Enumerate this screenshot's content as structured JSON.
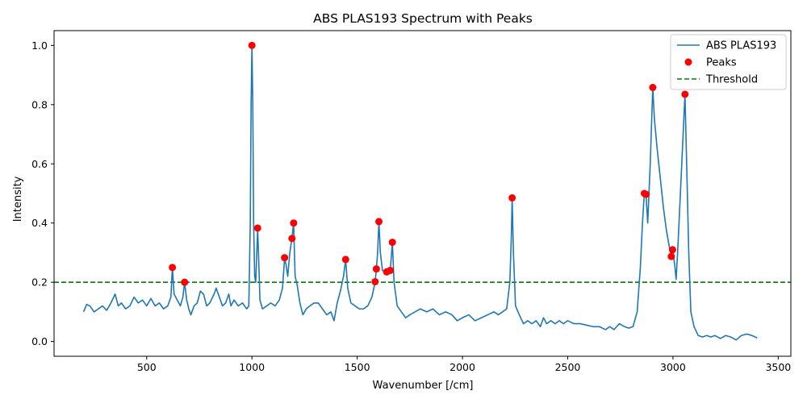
{
  "chart_data": {
    "type": "line",
    "title": "ABS PLAS193 Spectrum with Peaks",
    "xlabel": "Wavenumber [/cm]",
    "ylabel": "Intensity",
    "xlim": [
      60,
      3560
    ],
    "ylim": [
      -0.05,
      1.05
    ],
    "x_ticks": [
      500,
      1000,
      1500,
      2000,
      2500,
      3000,
      3500
    ],
    "y_ticks": [
      0.0,
      0.2,
      0.4,
      0.6,
      0.8,
      1.0
    ],
    "grid": false,
    "legend_position": "top-right",
    "series": [
      {
        "name": "ABS PLAS193",
        "kind": "line",
        "color": "#1f77b4",
        "points": [
          [
            200,
            0.1
          ],
          [
            215,
            0.125
          ],
          [
            230,
            0.12
          ],
          [
            250,
            0.1
          ],
          [
            270,
            0.11
          ],
          [
            290,
            0.12
          ],
          [
            310,
            0.105
          ],
          [
            330,
            0.13
          ],
          [
            350,
            0.16
          ],
          [
            365,
            0.12
          ],
          [
            380,
            0.13
          ],
          [
            400,
            0.11
          ],
          [
            420,
            0.12
          ],
          [
            440,
            0.15
          ],
          [
            460,
            0.13
          ],
          [
            480,
            0.14
          ],
          [
            500,
            0.12
          ],
          [
            520,
            0.145
          ],
          [
            540,
            0.12
          ],
          [
            560,
            0.13
          ],
          [
            580,
            0.11
          ],
          [
            600,
            0.12
          ],
          [
            615,
            0.15
          ],
          [
            622,
            0.25
          ],
          [
            630,
            0.16
          ],
          [
            645,
            0.14
          ],
          [
            660,
            0.12
          ],
          [
            672,
            0.15
          ],
          [
            680,
            0.2
          ],
          [
            690,
            0.14
          ],
          [
            700,
            0.11
          ],
          [
            710,
            0.09
          ],
          [
            725,
            0.12
          ],
          [
            740,
            0.13
          ],
          [
            755,
            0.17
          ],
          [
            770,
            0.16
          ],
          [
            785,
            0.12
          ],
          [
            800,
            0.13
          ],
          [
            820,
            0.16
          ],
          [
            830,
            0.18
          ],
          [
            845,
            0.15
          ],
          [
            860,
            0.12
          ],
          [
            875,
            0.13
          ],
          [
            890,
            0.16
          ],
          [
            900,
            0.12
          ],
          [
            915,
            0.14
          ],
          [
            935,
            0.12
          ],
          [
            955,
            0.13
          ],
          [
            975,
            0.11
          ],
          [
            985,
            0.12
          ],
          [
            992,
            0.4
          ],
          [
            996,
            0.8
          ],
          [
            1000,
            1.0
          ],
          [
            1004,
            0.8
          ],
          [
            1008,
            0.4
          ],
          [
            1013,
            0.22
          ],
          [
            1018,
            0.2
          ],
          [
            1023,
            0.3
          ],
          [
            1027,
            0.38
          ],
          [
            1032,
            0.28
          ],
          [
            1038,
            0.14
          ],
          [
            1050,
            0.11
          ],
          [
            1070,
            0.12
          ],
          [
            1090,
            0.13
          ],
          [
            1110,
            0.12
          ],
          [
            1130,
            0.14
          ],
          [
            1145,
            0.18
          ],
          [
            1155,
            0.28
          ],
          [
            1162,
            0.26
          ],
          [
            1170,
            0.22
          ],
          [
            1180,
            0.3
          ],
          [
            1190,
            0.35
          ],
          [
            1198,
            0.4
          ],
          [
            1205,
            0.22
          ],
          [
            1215,
            0.19
          ],
          [
            1228,
            0.13
          ],
          [
            1242,
            0.09
          ],
          [
            1258,
            0.11
          ],
          [
            1275,
            0.12
          ],
          [
            1295,
            0.13
          ],
          [
            1315,
            0.13
          ],
          [
            1335,
            0.11
          ],
          [
            1355,
            0.09
          ],
          [
            1375,
            0.1
          ],
          [
            1390,
            0.07
          ],
          [
            1405,
            0.13
          ],
          [
            1420,
            0.17
          ],
          [
            1435,
            0.22
          ],
          [
            1445,
            0.277
          ],
          [
            1455,
            0.18
          ],
          [
            1470,
            0.13
          ],
          [
            1490,
            0.12
          ],
          [
            1510,
            0.11
          ],
          [
            1530,
            0.11
          ],
          [
            1550,
            0.12
          ],
          [
            1570,
            0.15
          ],
          [
            1585,
            0.2
          ],
          [
            1591,
            0.245
          ],
          [
            1597,
            0.3
          ],
          [
            1603,
            0.405
          ],
          [
            1610,
            0.3
          ],
          [
            1620,
            0.24
          ],
          [
            1635,
            0.233
          ],
          [
            1645,
            0.235
          ],
          [
            1657,
            0.24
          ],
          [
            1667,
            0.335
          ],
          [
            1675,
            0.2
          ],
          [
            1690,
            0.12
          ],
          [
            1710,
            0.1
          ],
          [
            1730,
            0.08
          ],
          [
            1750,
            0.09
          ],
          [
            1775,
            0.1
          ],
          [
            1800,
            0.11
          ],
          [
            1830,
            0.1
          ],
          [
            1860,
            0.11
          ],
          [
            1890,
            0.09
          ],
          [
            1920,
            0.1
          ],
          [
            1950,
            0.09
          ],
          [
            1975,
            0.07
          ],
          [
            2000,
            0.08
          ],
          [
            2030,
            0.09
          ],
          [
            2060,
            0.07
          ],
          [
            2090,
            0.08
          ],
          [
            2120,
            0.09
          ],
          [
            2150,
            0.1
          ],
          [
            2170,
            0.09
          ],
          [
            2190,
            0.1
          ],
          [
            2210,
            0.11
          ],
          [
            2225,
            0.2
          ],
          [
            2232,
            0.35
          ],
          [
            2236,
            0.485
          ],
          [
            2242,
            0.3
          ],
          [
            2252,
            0.12
          ],
          [
            2270,
            0.09
          ],
          [
            2290,
            0.06
          ],
          [
            2310,
            0.07
          ],
          [
            2330,
            0.06
          ],
          [
            2350,
            0.07
          ],
          [
            2370,
            0.05
          ],
          [
            2385,
            0.08
          ],
          [
            2400,
            0.06
          ],
          [
            2420,
            0.07
          ],
          [
            2440,
            0.06
          ],
          [
            2460,
            0.07
          ],
          [
            2480,
            0.06
          ],
          [
            2500,
            0.07
          ],
          [
            2530,
            0.06
          ],
          [
            2560,
            0.06
          ],
          [
            2590,
            0.055
          ],
          [
            2620,
            0.05
          ],
          [
            2650,
            0.05
          ],
          [
            2680,
            0.04
          ],
          [
            2700,
            0.05
          ],
          [
            2720,
            0.04
          ],
          [
            2745,
            0.06
          ],
          [
            2770,
            0.05
          ],
          [
            2790,
            0.045
          ],
          [
            2810,
            0.05
          ],
          [
            2830,
            0.1
          ],
          [
            2845,
            0.25
          ],
          [
            2855,
            0.4
          ],
          [
            2864,
            0.5
          ],
          [
            2872,
            0.497
          ],
          [
            2880,
            0.4
          ],
          [
            2892,
            0.6
          ],
          [
            2904,
            0.858
          ],
          [
            2912,
            0.75
          ],
          [
            2925,
            0.65
          ],
          [
            2940,
            0.55
          ],
          [
            2955,
            0.45
          ],
          [
            2968,
            0.38
          ],
          [
            2980,
            0.33
          ],
          [
            2992,
            0.287
          ],
          [
            2998,
            0.31
          ],
          [
            3008,
            0.26
          ],
          [
            3015,
            0.21
          ],
          [
            3022,
            0.3
          ],
          [
            3032,
            0.45
          ],
          [
            3045,
            0.65
          ],
          [
            3057,
            0.835
          ],
          [
            3065,
            0.6
          ],
          [
            3075,
            0.3
          ],
          [
            3085,
            0.1
          ],
          [
            3100,
            0.05
          ],
          [
            3120,
            0.02
          ],
          [
            3140,
            0.015
          ],
          [
            3160,
            0.02
          ],
          [
            3180,
            0.015
          ],
          [
            3200,
            0.02
          ],
          [
            3225,
            0.01
          ],
          [
            3250,
            0.02
          ],
          [
            3275,
            0.015
          ],
          [
            3300,
            0.005
          ],
          [
            3325,
            0.02
          ],
          [
            3350,
            0.025
          ],
          [
            3375,
            0.02
          ],
          [
            3400,
            0.012
          ]
        ]
      },
      {
        "name": "Peaks",
        "kind": "scatter",
        "color": "#ff0000",
        "points": [
          [
            622,
            0.25
          ],
          [
            680,
            0.2
          ],
          [
            1000,
            1.0
          ],
          [
            1027,
            0.383
          ],
          [
            1155,
            0.283
          ],
          [
            1190,
            0.348
          ],
          [
            1198,
            0.4
          ],
          [
            1445,
            0.277
          ],
          [
            1585,
            0.202
          ],
          [
            1591,
            0.245
          ],
          [
            1603,
            0.405
          ],
          [
            1640,
            0.235
          ],
          [
            1657,
            0.24
          ],
          [
            1667,
            0.335
          ],
          [
            2236,
            0.485
          ],
          [
            2864,
            0.5
          ],
          [
            2872,
            0.497
          ],
          [
            2904,
            0.858
          ],
          [
            2992,
            0.287
          ],
          [
            2998,
            0.31
          ],
          [
            3057,
            0.835
          ]
        ]
      },
      {
        "name": "Threshold",
        "kind": "hline",
        "color": "#008000",
        "y": 0.2
      }
    ]
  }
}
